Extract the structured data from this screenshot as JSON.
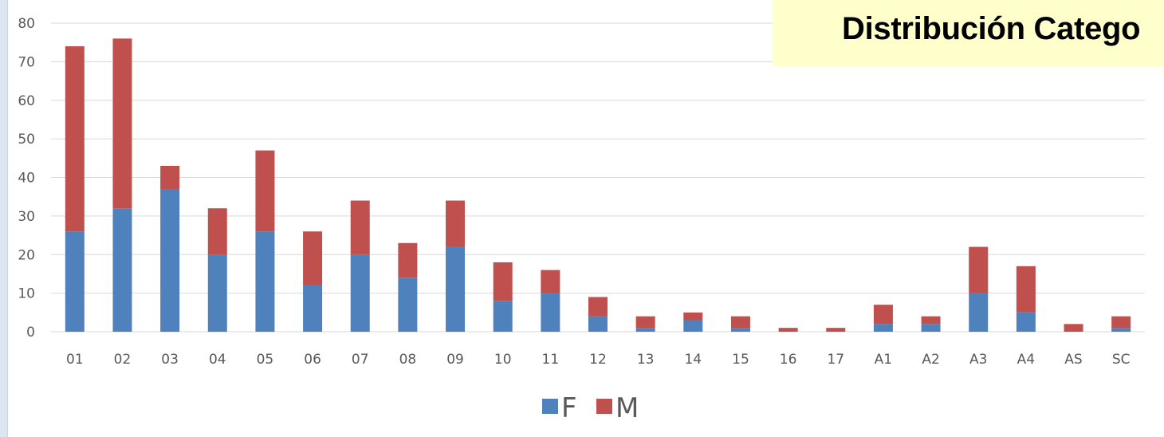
{
  "chart_data": {
    "type": "bar",
    "stacked": true,
    "title": "Distribución Catego",
    "categories": [
      "01",
      "02",
      "03",
      "04",
      "05",
      "06",
      "07",
      "08",
      "09",
      "10",
      "11",
      "12",
      "13",
      "14",
      "15",
      "16",
      "17",
      "A1",
      "A2",
      "A3",
      "A4",
      "AS",
      "SC"
    ],
    "series": [
      {
        "name": "F",
        "color": "#4f81bd",
        "values": [
          26,
          32,
          37,
          20,
          26,
          12,
          20,
          14,
          22,
          8,
          10,
          4,
          1,
          3,
          1,
          0,
          0,
          2,
          2,
          10,
          5,
          0,
          1
        ]
      },
      {
        "name": "M",
        "color": "#c0504d",
        "values": [
          48,
          44,
          6,
          12,
          21,
          14,
          14,
          9,
          12,
          10,
          6,
          5,
          3,
          2,
          3,
          1,
          1,
          5,
          2,
          12,
          12,
          2,
          3
        ]
      }
    ],
    "yticks": [
      0,
      10,
      20,
      30,
      40,
      50,
      60,
      70,
      80
    ],
    "ylim": [
      0,
      80
    ],
    "grid": true,
    "gridColor": "#d9d9d9",
    "legend": "bottom-center",
    "titleBoxColor": "#ffffcc"
  }
}
